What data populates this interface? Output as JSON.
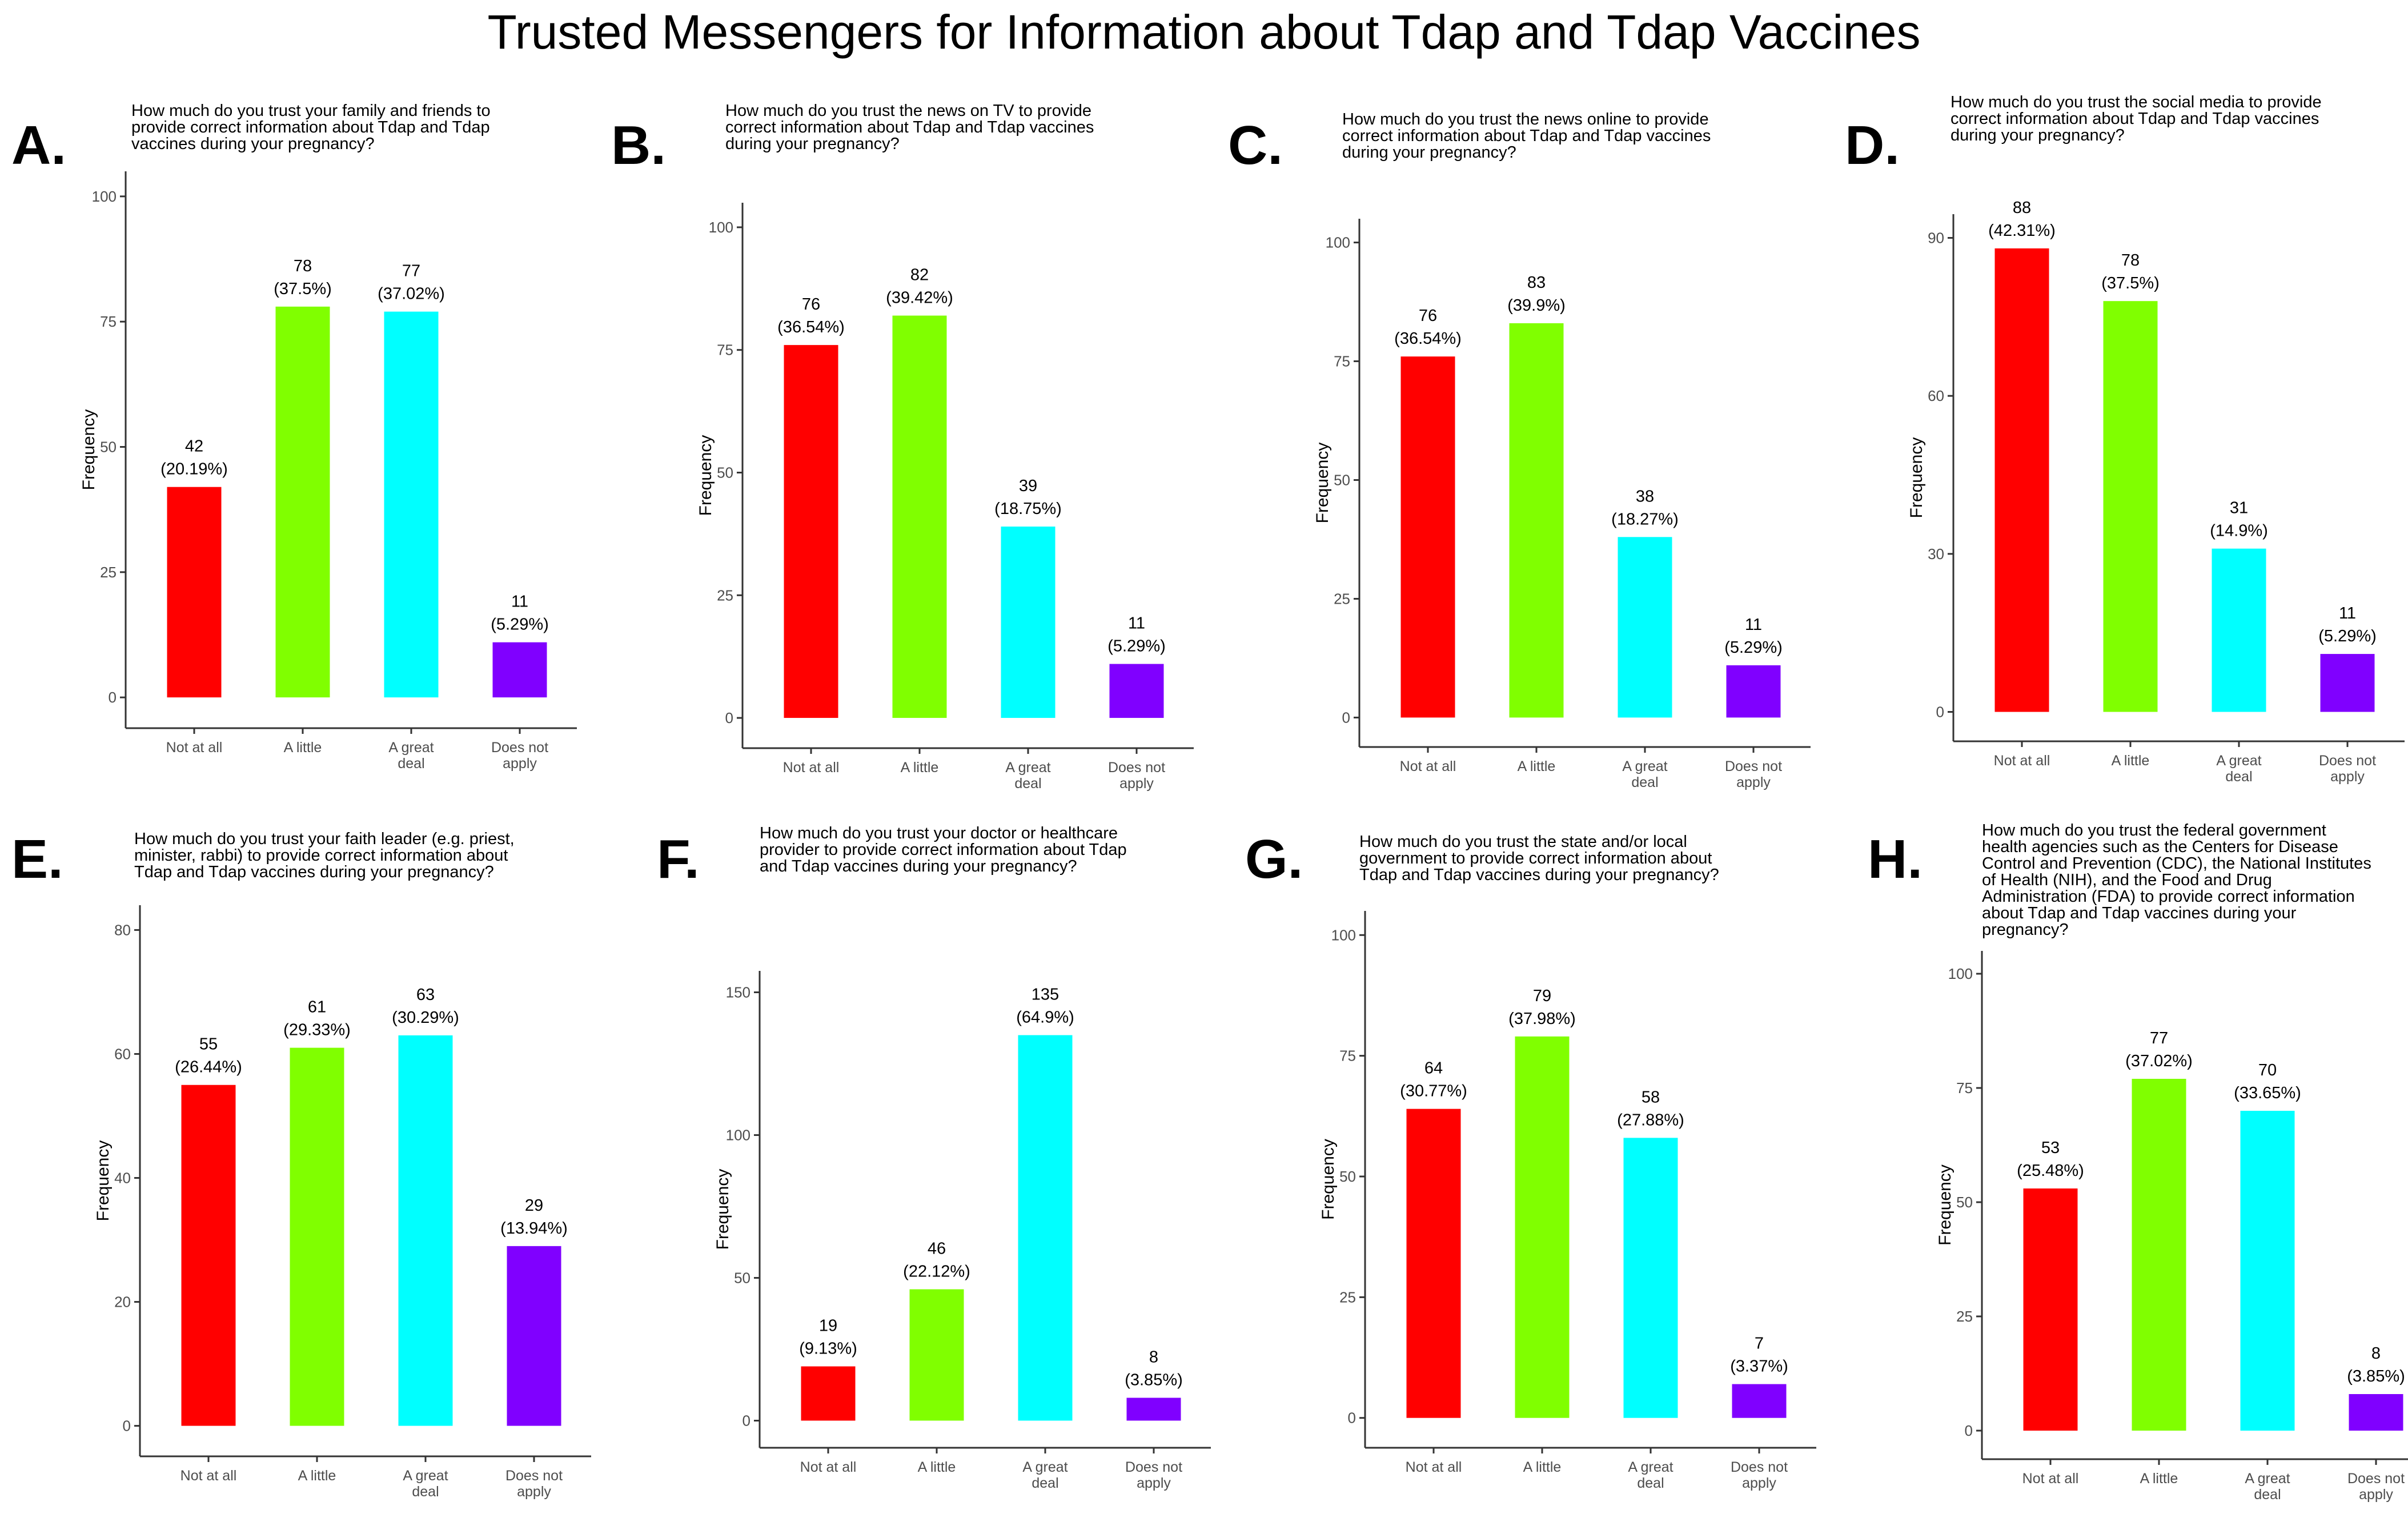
{
  "title": "Trusted Messengers for Information about Tdap and Tdap Vaccines",
  "colors": {
    "not_at_all": "#ff0000",
    "a_little": "#80ff00",
    "a_great_deal": "#00ffff",
    "does_not_apply": "#8000ff",
    "axis": "#333333",
    "tick_text": "#4d4d4d"
  },
  "chart_data": [
    {
      "panel": "A.",
      "type": "bar",
      "title_lines": [
        "How much do you trust your family and friends to",
        "provide correct information about Tdap and Tdap",
        "vaccines during your pregnancy?"
      ],
      "categories": [
        [
          "Not at all"
        ],
        [
          "A little"
        ],
        [
          "A great",
          "deal"
        ],
        [
          "Does not",
          "apply"
        ]
      ],
      "values": [
        42,
        78,
        77,
        11
      ],
      "labels": [
        "(20.19%)",
        "(37.5%)",
        "(37.02%)",
        "(5.29%)"
      ],
      "ylabel": "Frequency",
      "ylim": [
        0,
        100
      ],
      "yticks": [
        0,
        25,
        50,
        75,
        100
      ]
    },
    {
      "panel": "B.",
      "type": "bar",
      "title_lines": [
        "How much do you trust the news on TV to provide",
        "correct information about Tdap and Tdap vaccines",
        "during your pregnancy?"
      ],
      "categories": [
        [
          "Not at all"
        ],
        [
          "A little"
        ],
        [
          "A great",
          "deal"
        ],
        [
          "Does not",
          "apply"
        ]
      ],
      "values": [
        76,
        82,
        39,
        11
      ],
      "labels": [
        "(36.54%)",
        "(39.42%)",
        "(18.75%)",
        "(5.29%)"
      ],
      "ylabel": "Frequency",
      "ylim": [
        0,
        100
      ],
      "yticks": [
        0,
        25,
        50,
        75,
        100
      ]
    },
    {
      "panel": "C.",
      "type": "bar",
      "title_lines": [
        "How much do you trust the news online to provide",
        "correct information about Tdap and Tdap vaccines",
        "during your pregnancy?"
      ],
      "categories": [
        [
          "Not at all"
        ],
        [
          "A little"
        ],
        [
          "A great",
          "deal"
        ],
        [
          "Does not",
          "apply"
        ]
      ],
      "values": [
        76,
        83,
        38,
        11
      ],
      "labels": [
        "(36.54%)",
        "(39.9%)",
        "(18.27%)",
        "(5.29%)"
      ],
      "ylabel": "Frequency",
      "ylim": [
        0,
        100
      ],
      "yticks": [
        0,
        25,
        50,
        75,
        100
      ]
    },
    {
      "panel": "D.",
      "type": "bar",
      "title_lines": [
        "How much do you trust the social media to provide",
        "correct information about Tdap and Tdap vaccines",
        "during your pregnancy?"
      ],
      "categories": [
        [
          "Not at all"
        ],
        [
          "A little"
        ],
        [
          "A great",
          "deal"
        ],
        [
          "Does not",
          "apply"
        ]
      ],
      "values": [
        88,
        78,
        31,
        11
      ],
      "labels": [
        "(42.31%)",
        "(37.5%)",
        "(14.9%)",
        "(5.29%)"
      ],
      "ylabel": "Frequency",
      "ylim": [
        0,
        90
      ],
      "yticks": [
        0,
        30,
        60,
        90
      ]
    },
    {
      "panel": "E.",
      "type": "bar",
      "title_lines": [
        "How much do you trust your faith leader (e.g. priest,",
        "minister, rabbi) to provide correct information about",
        "Tdap and Tdap vaccines during your pregnancy?"
      ],
      "categories": [
        [
          "Not at all"
        ],
        [
          "A little"
        ],
        [
          "A great",
          "deal"
        ],
        [
          "Does not",
          "apply"
        ]
      ],
      "values": [
        55,
        61,
        63,
        29
      ],
      "labels": [
        "(26.44%)",
        "(29.33%)",
        "(30.29%)",
        "(13.94%)"
      ],
      "ylabel": "Frequency",
      "ylim": [
        0,
        80
      ],
      "yticks": [
        0,
        20,
        40,
        60,
        80
      ]
    },
    {
      "panel": "F.",
      "type": "bar",
      "title_lines": [
        "How much do you trust your doctor or healthcare",
        "provider to provide correct information about Tdap",
        "and Tdap vaccines during your pregnancy?"
      ],
      "categories": [
        [
          "Not at all"
        ],
        [
          "A little"
        ],
        [
          "A great",
          "deal"
        ],
        [
          "Does not",
          "apply"
        ]
      ],
      "values": [
        19,
        46,
        135,
        8
      ],
      "labels": [
        "(9.13%)",
        "(22.12%)",
        "(64.9%)",
        "(3.85%)"
      ],
      "ylabel": "Frequency",
      "ylim": [
        0,
        150
      ],
      "yticks": [
        0,
        50,
        100,
        150
      ]
    },
    {
      "panel": "G.",
      "type": "bar",
      "title_lines": [
        "How much do you trust the state and/or local",
        "government to provide correct information about",
        "Tdap and Tdap vaccines during your pregnancy?"
      ],
      "categories": [
        [
          "Not at all"
        ],
        [
          "A little"
        ],
        [
          "A great",
          "deal"
        ],
        [
          "Does not",
          "apply"
        ]
      ],
      "values": [
        64,
        79,
        58,
        7
      ],
      "labels": [
        "(30.77%)",
        "(37.98%)",
        "(27.88%)",
        "(3.37%)"
      ],
      "ylabel": "Frequency",
      "ylim": [
        0,
        100
      ],
      "yticks": [
        0,
        25,
        50,
        75,
        100
      ]
    },
    {
      "panel": "H.",
      "type": "bar",
      "title_lines": [
        "How much do you trust the federal government",
        "health agencies such as the Centers for Disease",
        "Control and Prevention (CDC), the National Institutes",
        "of Health (NIH), and the Food and Drug",
        "Administration (FDA) to provide correct information",
        "about Tdap and Tdap vaccines during your",
        "pregnancy?"
      ],
      "categories": [
        [
          "Not at all"
        ],
        [
          "A little"
        ],
        [
          "A great",
          "deal"
        ],
        [
          "Does not",
          "apply"
        ]
      ],
      "values": [
        53,
        77,
        70,
        8
      ],
      "labels": [
        "(25.48%)",
        "(37.02%)",
        "(33.65%)",
        "(3.85%)"
      ],
      "ylabel": "Frequency",
      "ylim": [
        0,
        100
      ],
      "yticks": [
        0,
        25,
        50,
        75,
        100
      ]
    }
  ]
}
